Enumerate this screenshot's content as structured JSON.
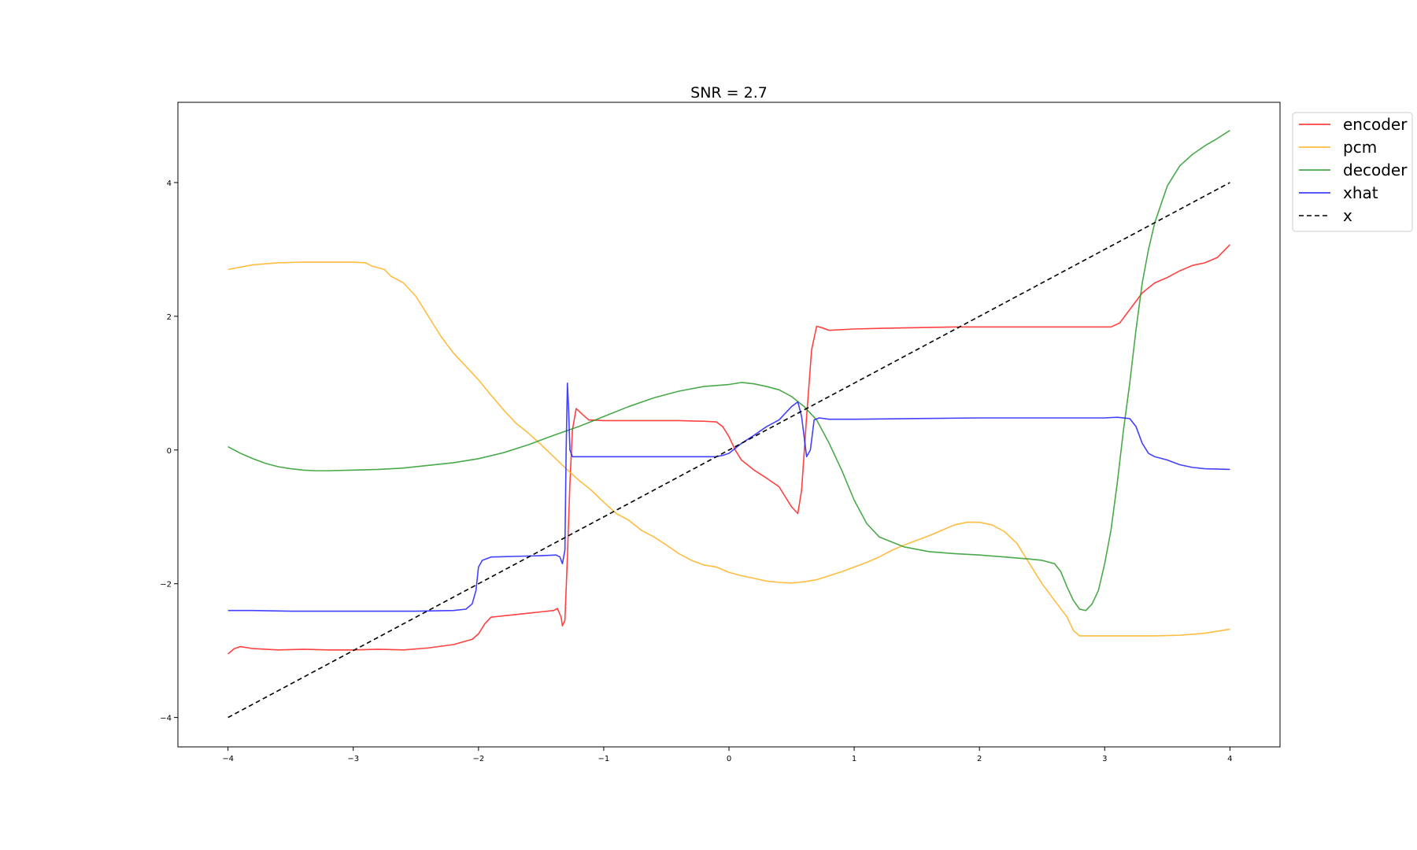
{
  "chart_data": {
    "type": "line",
    "title": "SNR = 2.7",
    "xlabel": "",
    "ylabel": "",
    "xlim": [
      -4.4,
      4.4
    ],
    "ylim": [
      -4.44,
      5.2
    ],
    "xticks": [
      -4,
      -3,
      -2,
      -1,
      0,
      1,
      2,
      3,
      4
    ],
    "yticks": [
      -4,
      -2,
      0,
      2,
      4
    ],
    "xtick_labels": [
      "−4",
      "−3",
      "−2",
      "−1",
      "0",
      "1",
      "2",
      "3",
      "4"
    ],
    "ytick_labels": [
      "−4",
      "−2",
      "0",
      "2",
      "4"
    ],
    "grid": false,
    "legend_position": "outside-top-right",
    "series": [
      {
        "name": "encoder",
        "color": "#ff2020",
        "dash": "",
        "points": [
          [
            -4.0,
            -3.05
          ],
          [
            -3.95,
            -2.97
          ],
          [
            -3.9,
            -2.94
          ],
          [
            -3.8,
            -2.97
          ],
          [
            -3.6,
            -2.99
          ],
          [
            -3.4,
            -2.98
          ],
          [
            -3.2,
            -2.99
          ],
          [
            -3.0,
            -2.99
          ],
          [
            -2.8,
            -2.98
          ],
          [
            -2.6,
            -2.99
          ],
          [
            -2.4,
            -2.96
          ],
          [
            -2.2,
            -2.91
          ],
          [
            -2.05,
            -2.83
          ],
          [
            -2.0,
            -2.75
          ],
          [
            -1.95,
            -2.6
          ],
          [
            -1.9,
            -2.5
          ],
          [
            -1.8,
            -2.48
          ],
          [
            -1.7,
            -2.46
          ],
          [
            -1.6,
            -2.44
          ],
          [
            -1.5,
            -2.42
          ],
          [
            -1.4,
            -2.4
          ],
          [
            -1.37,
            -2.37
          ],
          [
            -1.34,
            -2.5
          ],
          [
            -1.33,
            -2.63
          ],
          [
            -1.31,
            -2.55
          ],
          [
            -1.29,
            -1.6
          ],
          [
            -1.27,
            -0.5
          ],
          [
            -1.25,
            0.3
          ],
          [
            -1.22,
            0.62
          ],
          [
            -1.18,
            0.55
          ],
          [
            -1.12,
            0.45
          ],
          [
            -1.0,
            0.44
          ],
          [
            -0.8,
            0.44
          ],
          [
            -0.6,
            0.44
          ],
          [
            -0.4,
            0.44
          ],
          [
            -0.2,
            0.43
          ],
          [
            -0.1,
            0.42
          ],
          [
            -0.05,
            0.35
          ],
          [
            0.0,
            0.2
          ],
          [
            0.05,
            0.0
          ],
          [
            0.1,
            -0.15
          ],
          [
            0.2,
            -0.3
          ],
          [
            0.3,
            -0.42
          ],
          [
            0.4,
            -0.55
          ],
          [
            0.45,
            -0.7
          ],
          [
            0.5,
            -0.85
          ],
          [
            0.55,
            -0.95
          ],
          [
            0.58,
            -0.6
          ],
          [
            0.62,
            0.5
          ],
          [
            0.66,
            1.5
          ],
          [
            0.7,
            1.85
          ],
          [
            0.74,
            1.83
          ],
          [
            0.8,
            1.79
          ],
          [
            1.0,
            1.81
          ],
          [
            1.2,
            1.82
          ],
          [
            1.5,
            1.83
          ],
          [
            1.8,
            1.84
          ],
          [
            2.0,
            1.84
          ],
          [
            2.2,
            1.84
          ],
          [
            2.5,
            1.84
          ],
          [
            2.8,
            1.84
          ],
          [
            3.05,
            1.84
          ],
          [
            3.12,
            1.9
          ],
          [
            3.2,
            2.1
          ],
          [
            3.3,
            2.35
          ],
          [
            3.4,
            2.5
          ],
          [
            3.5,
            2.58
          ],
          [
            3.6,
            2.68
          ],
          [
            3.7,
            2.76
          ],
          [
            3.8,
            2.8
          ],
          [
            3.9,
            2.88
          ],
          [
            4.0,
            3.07
          ]
        ]
      },
      {
        "name": "pcm",
        "color": "#ffb020",
        "dash": "",
        "points": [
          [
            -4.0,
            2.7
          ],
          [
            -3.8,
            2.77
          ],
          [
            -3.6,
            2.8
          ],
          [
            -3.4,
            2.81
          ],
          [
            -3.2,
            2.81
          ],
          [
            -3.0,
            2.81
          ],
          [
            -2.9,
            2.8
          ],
          [
            -2.85,
            2.75
          ],
          [
            -2.75,
            2.7
          ],
          [
            -2.7,
            2.6
          ],
          [
            -2.6,
            2.5
          ],
          [
            -2.5,
            2.3
          ],
          [
            -2.4,
            2.0
          ],
          [
            -2.3,
            1.7
          ],
          [
            -2.2,
            1.45
          ],
          [
            -2.1,
            1.25
          ],
          [
            -2.0,
            1.05
          ],
          [
            -1.9,
            0.82
          ],
          [
            -1.8,
            0.6
          ],
          [
            -1.7,
            0.4
          ],
          [
            -1.6,
            0.25
          ],
          [
            -1.5,
            0.08
          ],
          [
            -1.4,
            -0.1
          ],
          [
            -1.3,
            -0.28
          ],
          [
            -1.2,
            -0.45
          ],
          [
            -1.1,
            -0.6
          ],
          [
            -1.0,
            -0.78
          ],
          [
            -0.9,
            -0.95
          ],
          [
            -0.8,
            -1.05
          ],
          [
            -0.7,
            -1.2
          ],
          [
            -0.6,
            -1.3
          ],
          [
            -0.5,
            -1.42
          ],
          [
            -0.4,
            -1.55
          ],
          [
            -0.3,
            -1.65
          ],
          [
            -0.2,
            -1.72
          ],
          [
            -0.1,
            -1.75
          ],
          [
            0.0,
            -1.83
          ],
          [
            0.1,
            -1.88
          ],
          [
            0.2,
            -1.92
          ],
          [
            0.3,
            -1.96
          ],
          [
            0.4,
            -1.98
          ],
          [
            0.5,
            -1.99
          ],
          [
            0.6,
            -1.97
          ],
          [
            0.7,
            -1.94
          ],
          [
            0.8,
            -1.88
          ],
          [
            0.9,
            -1.82
          ],
          [
            1.0,
            -1.75
          ],
          [
            1.1,
            -1.68
          ],
          [
            1.2,
            -1.6
          ],
          [
            1.3,
            -1.5
          ],
          [
            1.4,
            -1.42
          ],
          [
            1.5,
            -1.35
          ],
          [
            1.6,
            -1.28
          ],
          [
            1.7,
            -1.2
          ],
          [
            1.8,
            -1.12
          ],
          [
            1.9,
            -1.08
          ],
          [
            2.0,
            -1.08
          ],
          [
            2.1,
            -1.12
          ],
          [
            2.2,
            -1.22
          ],
          [
            2.3,
            -1.4
          ],
          [
            2.4,
            -1.7
          ],
          [
            2.5,
            -2.0
          ],
          [
            2.6,
            -2.25
          ],
          [
            2.7,
            -2.5
          ],
          [
            2.75,
            -2.7
          ],
          [
            2.8,
            -2.78
          ],
          [
            3.0,
            -2.78
          ],
          [
            3.2,
            -2.78
          ],
          [
            3.4,
            -2.78
          ],
          [
            3.6,
            -2.77
          ],
          [
            3.8,
            -2.74
          ],
          [
            4.0,
            -2.68
          ]
        ]
      },
      {
        "name": "decoder",
        "color": "#2a9a2a",
        "dash": "",
        "points": [
          [
            -4.0,
            0.05
          ],
          [
            -3.9,
            -0.05
          ],
          [
            -3.8,
            -0.13
          ],
          [
            -3.7,
            -0.2
          ],
          [
            -3.6,
            -0.25
          ],
          [
            -3.5,
            -0.28
          ],
          [
            -3.4,
            -0.3
          ],
          [
            -3.3,
            -0.31
          ],
          [
            -3.2,
            -0.31
          ],
          [
            -3.0,
            -0.3
          ],
          [
            -2.8,
            -0.29
          ],
          [
            -2.6,
            -0.27
          ],
          [
            -2.4,
            -0.23
          ],
          [
            -2.2,
            -0.19
          ],
          [
            -2.0,
            -0.13
          ],
          [
            -1.8,
            -0.04
          ],
          [
            -1.6,
            0.08
          ],
          [
            -1.4,
            0.22
          ],
          [
            -1.2,
            0.35
          ],
          [
            -1.0,
            0.5
          ],
          [
            -0.8,
            0.65
          ],
          [
            -0.6,
            0.78
          ],
          [
            -0.4,
            0.88
          ],
          [
            -0.2,
            0.95
          ],
          [
            0.0,
            0.98
          ],
          [
            0.1,
            1.01
          ],
          [
            0.2,
            0.99
          ],
          [
            0.3,
            0.95
          ],
          [
            0.4,
            0.9
          ],
          [
            0.5,
            0.8
          ],
          [
            0.6,
            0.65
          ],
          [
            0.7,
            0.45
          ],
          [
            0.8,
            0.1
          ],
          [
            0.9,
            -0.3
          ],
          [
            1.0,
            -0.75
          ],
          [
            1.1,
            -1.1
          ],
          [
            1.2,
            -1.3
          ],
          [
            1.4,
            -1.45
          ],
          [
            1.6,
            -1.52
          ],
          [
            1.8,
            -1.55
          ],
          [
            2.0,
            -1.57
          ],
          [
            2.2,
            -1.6
          ],
          [
            2.4,
            -1.63
          ],
          [
            2.5,
            -1.65
          ],
          [
            2.6,
            -1.7
          ],
          [
            2.65,
            -1.82
          ],
          [
            2.7,
            -2.05
          ],
          [
            2.75,
            -2.25
          ],
          [
            2.8,
            -2.38
          ],
          [
            2.85,
            -2.4
          ],
          [
            2.9,
            -2.3
          ],
          [
            2.95,
            -2.1
          ],
          [
            3.0,
            -1.7
          ],
          [
            3.05,
            -1.2
          ],
          [
            3.1,
            -0.5
          ],
          [
            3.15,
            0.3
          ],
          [
            3.2,
            1.0
          ],
          [
            3.25,
            1.8
          ],
          [
            3.3,
            2.5
          ],
          [
            3.35,
            3.0
          ],
          [
            3.4,
            3.4
          ],
          [
            3.5,
            3.95
          ],
          [
            3.6,
            4.25
          ],
          [
            3.7,
            4.42
          ],
          [
            3.8,
            4.55
          ],
          [
            3.9,
            4.66
          ],
          [
            4.0,
            4.78
          ]
        ]
      },
      {
        "name": "xhat",
        "color": "#2020ff",
        "dash": "",
        "points": [
          [
            -4.0,
            -2.4
          ],
          [
            -3.8,
            -2.4
          ],
          [
            -3.5,
            -2.41
          ],
          [
            -3.0,
            -2.41
          ],
          [
            -2.5,
            -2.41
          ],
          [
            -2.2,
            -2.4
          ],
          [
            -2.1,
            -2.38
          ],
          [
            -2.05,
            -2.3
          ],
          [
            -2.02,
            -2.1
          ],
          [
            -2.0,
            -1.75
          ],
          [
            -1.97,
            -1.65
          ],
          [
            -1.9,
            -1.6
          ],
          [
            -1.7,
            -1.59
          ],
          [
            -1.5,
            -1.58
          ],
          [
            -1.38,
            -1.57
          ],
          [
            -1.35,
            -1.6
          ],
          [
            -1.33,
            -1.7
          ],
          [
            -1.31,
            -1.5
          ],
          [
            -1.3,
            0.0
          ],
          [
            -1.29,
            1.0
          ],
          [
            -1.28,
            0.6
          ],
          [
            -1.27,
            0.0
          ],
          [
            -1.25,
            -0.1
          ],
          [
            -1.2,
            -0.1
          ],
          [
            -1.0,
            -0.1
          ],
          [
            -0.5,
            -0.1
          ],
          [
            -0.2,
            -0.1
          ],
          [
            -0.1,
            -0.1
          ],
          [
            -0.05,
            -0.08
          ],
          [
            0.0,
            -0.05
          ],
          [
            0.1,
            0.1
          ],
          [
            0.2,
            0.22
          ],
          [
            0.3,
            0.35
          ],
          [
            0.4,
            0.45
          ],
          [
            0.45,
            0.55
          ],
          [
            0.5,
            0.65
          ],
          [
            0.55,
            0.72
          ],
          [
            0.58,
            0.5
          ],
          [
            0.62,
            -0.1
          ],
          [
            0.65,
            0.0
          ],
          [
            0.68,
            0.45
          ],
          [
            0.72,
            0.48
          ],
          [
            0.8,
            0.46
          ],
          [
            1.0,
            0.46
          ],
          [
            1.5,
            0.47
          ],
          [
            2.0,
            0.48
          ],
          [
            2.5,
            0.48
          ],
          [
            3.0,
            0.48
          ],
          [
            3.1,
            0.49
          ],
          [
            3.2,
            0.47
          ],
          [
            3.25,
            0.35
          ],
          [
            3.3,
            0.1
          ],
          [
            3.35,
            -0.05
          ],
          [
            3.4,
            -0.1
          ],
          [
            3.5,
            -0.15
          ],
          [
            3.6,
            -0.22
          ],
          [
            3.7,
            -0.26
          ],
          [
            3.8,
            -0.28
          ],
          [
            4.0,
            -0.29
          ]
        ]
      },
      {
        "name": "x",
        "color": "#000000",
        "dash": "6,4",
        "points": [
          [
            -4.0,
            -4.0
          ],
          [
            4.0,
            4.0
          ]
        ]
      }
    ]
  }
}
